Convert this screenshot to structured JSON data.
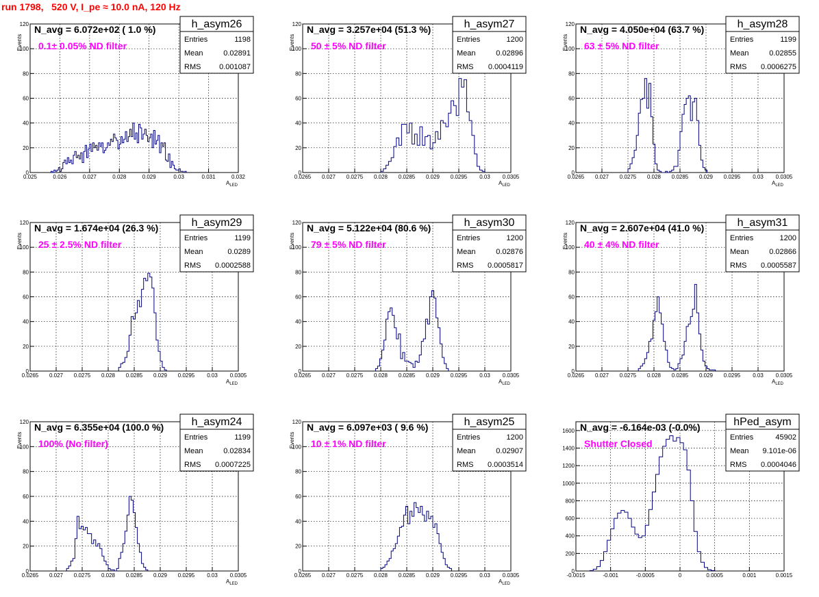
{
  "header": {
    "title": "run 1798,   520 V, I_pe ≈ 10.0 nA, 120 Hz"
  },
  "colors": {
    "title": "#ff0000",
    "histogram": "#000080",
    "filter_label": "#ff00ff"
  },
  "chart_data": [
    {
      "type": "histogram",
      "name": "h_asym26",
      "navg": "N_avg = 6.072e+02 ( 1.0 %)",
      "filter": "0.1± 0.05% ND filter",
      "stats": [
        [
          "Entries",
          "1198"
        ],
        [
          "Mean",
          "0.02891"
        ],
        [
          "RMS",
          "0.001087"
        ]
      ],
      "ylabel": "Events",
      "xlabel": "A",
      "xlabel_sub": "LED",
      "xlim": [
        0.025,
        0.032
      ],
      "ylim": [
        0,
        120
      ],
      "xticks": [
        0.025,
        0.026,
        0.027,
        0.028,
        0.029,
        0.03,
        0.031,
        0.032
      ],
      "xtick_labels": [
        "0.025",
        "0.026",
        "0.027",
        "0.028",
        "0.029",
        "0.03",
        "0.031",
        "0.032"
      ],
      "yticks": [
        0,
        20,
        40,
        60,
        80,
        100,
        120
      ],
      "ytick_labels": [
        "0",
        "20",
        "40",
        "60",
        "80",
        "100",
        "120"
      ],
      "bin_start": 0.0257,
      "bin_width": 5e-05,
      "counts": [
        1,
        0,
        2,
        1,
        2,
        4,
        1,
        3,
        8,
        10,
        7,
        12,
        8,
        10,
        7,
        14,
        17,
        12,
        14,
        11,
        16,
        8,
        17,
        22,
        12,
        19,
        23,
        17,
        24,
        20,
        22,
        18,
        24,
        21,
        24,
        16,
        18,
        20,
        24,
        22,
        27,
        25,
        31,
        28,
        26,
        19,
        23,
        29,
        24,
        27,
        33,
        25,
        29,
        35,
        29,
        40,
        27,
        32,
        24,
        39,
        36,
        27,
        31,
        35,
        30,
        25,
        28,
        31,
        20,
        34,
        23,
        26,
        30,
        16,
        24,
        21,
        24,
        10,
        9,
        15,
        4,
        9,
        6,
        3,
        2,
        2,
        3,
        1,
        1,
        0,
        1
      ]
    },
    {
      "type": "histogram",
      "name": "h_asym27",
      "navg": "N_avg = 3.257e+04 (51.3 %)",
      "filter": "50 ± 5% ND filter",
      "stats": [
        [
          "Entries",
          "1200"
        ],
        [
          "Mean",
          "0.02896"
        ],
        [
          "RMS",
          "0.0004119"
        ]
      ],
      "ylabel": "Events",
      "xlabel": "A",
      "xlabel_sub": "LED",
      "xlim": [
        0.0265,
        0.0305
      ],
      "ylim": [
        0,
        120
      ],
      "xticks": [
        0.0265,
        0.027,
        0.0275,
        0.028,
        0.0285,
        0.029,
        0.0295,
        0.03,
        0.0305
      ],
      "xtick_labels": [
        "0.0265",
        "0.027",
        "0.0275",
        "0.028",
        "0.0285",
        "0.029",
        "0.0295",
        "0.03",
        "0.0305"
      ],
      "yticks": [
        0,
        20,
        40,
        60,
        80,
        100,
        120
      ],
      "ytick_labels": [
        "0",
        "20",
        "40",
        "60",
        "80",
        "100",
        "120"
      ],
      "bin_start": 0.028,
      "bin_width": 5e-05,
      "counts": [
        1,
        3,
        6,
        9,
        12,
        21,
        28,
        22,
        39,
        39,
        32,
        40,
        23,
        31,
        22,
        37,
        22,
        29,
        30,
        19,
        24,
        33,
        27,
        42,
        40,
        37,
        48,
        58,
        54,
        46,
        76,
        69,
        75,
        49,
        42,
        30,
        15,
        5,
        2,
        1
      ]
    },
    {
      "type": "histogram",
      "name": "h_asym28",
      "navg": "N_avg = 4.050e+04 (63.7 %)",
      "filter": "63 ± 5% ND filter",
      "stats": [
        [
          "Entries",
          "1199"
        ],
        [
          "Mean",
          "0.02855"
        ],
        [
          "RMS",
          "0.0006275"
        ]
      ],
      "ylabel": "Events",
      "xlabel": "A",
      "xlabel_sub": "LED",
      "xlim": [
        0.0265,
        0.0305
      ],
      "ylim": [
        0,
        120
      ],
      "xticks": [
        0.0265,
        0.027,
        0.0275,
        0.028,
        0.0285,
        0.029,
        0.0295,
        0.03,
        0.0305
      ],
      "xtick_labels": [
        "0.0265",
        "0.027",
        "0.0275",
        "0.028",
        "0.0285",
        "0.029",
        "0.0295",
        "0.03",
        "0.0305"
      ],
      "yticks": [
        0,
        20,
        40,
        60,
        80,
        100,
        120
      ],
      "ytick_labels": [
        "0",
        "20",
        "40",
        "60",
        "80",
        "100",
        "120"
      ],
      "bin_start": 0.0275,
      "bin_width": 4e-05,
      "counts": [
        3,
        7,
        12,
        18,
        30,
        48,
        59,
        60,
        76,
        52,
        72,
        45,
        23,
        7,
        2,
        1,
        0,
        0,
        1,
        0,
        1,
        2,
        5,
        5,
        18,
        33,
        47,
        55,
        60,
        62,
        42,
        57,
        60,
        42,
        22,
        10,
        4,
        2
      ]
    },
    {
      "type": "histogram",
      "name": "h_asym29",
      "navg": "N_avg = 1.674e+04 (26.3 %)",
      "filter": "25 ± 2.5% ND filter",
      "stats": [
        [
          "Entries",
          "1199"
        ],
        [
          "Mean",
          "0.0289"
        ],
        [
          "RMS",
          "0.0002588"
        ]
      ],
      "ylabel": "Events",
      "xlabel": "A",
      "xlabel_sub": "LED",
      "xlim": [
        0.0265,
        0.0305
      ],
      "ylim": [
        0,
        120
      ],
      "xticks": [
        0.0265,
        0.027,
        0.0275,
        0.028,
        0.0285,
        0.029,
        0.0295,
        0.03,
        0.0305
      ],
      "xtick_labels": [
        "0.0265",
        "0.027",
        "0.0275",
        "0.028",
        "0.0285",
        "0.029",
        "0.0295",
        "0.03",
        "0.0305"
      ],
      "yticks": [
        0,
        20,
        40,
        60,
        80,
        100,
        120
      ],
      "ytick_labels": [
        "0",
        "20",
        "40",
        "60",
        "80",
        "100",
        "120"
      ],
      "bin_start": 0.0282,
      "bin_width": 4e-05,
      "counts": [
        3,
        6,
        7,
        11,
        16,
        29,
        44,
        42,
        47,
        57,
        52,
        66,
        75,
        73,
        79,
        76,
        67,
        47,
        25,
        16,
        8,
        3,
        1
      ]
    },
    {
      "type": "histogram",
      "name": "h_asym30",
      "navg": "N_avg = 5.122e+04 (80.6 %)",
      "filter": "79 ± 5% ND filter",
      "stats": [
        [
          "Entries",
          "1200"
        ],
        [
          "Mean",
          "0.02876"
        ],
        [
          "RMS",
          "0.0005817"
        ]
      ],
      "ylabel": "Events",
      "xlabel": "A",
      "xlabel_sub": "LED",
      "xlim": [
        0.0265,
        0.0305
      ],
      "ylim": [
        0,
        120
      ],
      "xticks": [
        0.0265,
        0.027,
        0.0275,
        0.028,
        0.0285,
        0.029,
        0.0295,
        0.03,
        0.0305
      ],
      "xtick_labels": [
        "0.0265",
        "0.027",
        "0.0275",
        "0.028",
        "0.0285",
        "0.029",
        "0.0295",
        "0.03",
        "0.0305"
      ],
      "yticks": [
        0,
        20,
        40,
        60,
        80,
        100,
        120
      ],
      "ytick_labels": [
        "0",
        "20",
        "40",
        "60",
        "80",
        "100",
        "120"
      ],
      "bin_start": 0.0279,
      "bin_width": 4e-05,
      "counts": [
        2,
        4,
        10,
        17,
        25,
        42,
        48,
        51,
        45,
        35,
        26,
        30,
        10,
        15,
        8,
        8,
        7,
        6,
        3,
        8,
        7,
        13,
        24,
        26,
        42,
        38,
        60,
        65,
        59,
        43,
        35,
        22,
        11,
        6,
        2
      ]
    },
    {
      "type": "histogram",
      "name": "h_asym31",
      "navg": "N_avg = 2.607e+04 (41.0 %)",
      "filter": "40 ± 4% ND filter",
      "stats": [
        [
          "Entries",
          "1200"
        ],
        [
          "Mean",
          "0.02866"
        ],
        [
          "RMS",
          "0.0005587"
        ]
      ],
      "ylabel": "Events",
      "xlabel": "A",
      "xlabel_sub": "LED",
      "xlim": [
        0.0265,
        0.0305
      ],
      "ylim": [
        0,
        120
      ],
      "xticks": [
        0.0265,
        0.027,
        0.0275,
        0.028,
        0.0285,
        0.029,
        0.0295,
        0.03,
        0.0305
      ],
      "xtick_labels": [
        "0.0265",
        "0.027",
        "0.0275",
        "0.028",
        "0.0285",
        "0.029",
        "0.0295",
        "0.03",
        "0.0305"
      ],
      "yticks": [
        0,
        20,
        40,
        60,
        80,
        100,
        120
      ],
      "ytick_labels": [
        "0",
        "20",
        "40",
        "60",
        "80",
        "100",
        "120"
      ],
      "bin_start": 0.0277,
      "bin_width": 4e-05,
      "counts": [
        2,
        4,
        6,
        10,
        15,
        24,
        26,
        41,
        48,
        60,
        47,
        38,
        24,
        17,
        7,
        3,
        2,
        1,
        2,
        6,
        10,
        13,
        24,
        36,
        38,
        44,
        50,
        70,
        47,
        30,
        17,
        8,
        4,
        2,
        1,
        1,
        1
      ]
    },
    {
      "type": "histogram",
      "name": "h_asym24",
      "navg": "N_avg = 6.355e+04 (100.0 %)",
      "filter": "100% (No filter)",
      "stats": [
        [
          "Entries",
          "1199"
        ],
        [
          "Mean",
          "0.02834"
        ],
        [
          "RMS",
          "0.0007225"
        ]
      ],
      "ylabel": "Events",
      "xlabel": "A",
      "xlabel_sub": "LED",
      "xlim": [
        0.0265,
        0.0305
      ],
      "ylim": [
        0,
        120
      ],
      "xticks": [
        0.0265,
        0.027,
        0.0275,
        0.028,
        0.0285,
        0.029,
        0.0295,
        0.03,
        0.0305
      ],
      "xtick_labels": [
        "0.0265",
        "0.027",
        "0.0275",
        "0.028",
        "0.0285",
        "0.029",
        "0.0295",
        "0.03",
        "0.0305"
      ],
      "yticks": [
        0,
        20,
        40,
        60,
        80,
        100,
        120
      ],
      "ytick_labels": [
        "0",
        "20",
        "40",
        "60",
        "80",
        "100",
        "120"
      ],
      "bin_start": 0.0272,
      "bin_width": 4e-05,
      "counts": [
        2,
        4,
        8,
        10,
        26,
        44,
        34,
        36,
        33,
        35,
        30,
        30,
        22,
        25,
        20,
        22,
        18,
        12,
        8,
        5,
        2,
        1,
        1,
        0,
        2,
        10,
        15,
        22,
        32,
        45,
        60,
        57,
        47,
        35,
        22,
        15,
        6,
        3,
        1
      ]
    },
    {
      "type": "histogram",
      "name": "h_asym25",
      "navg": "N_avg = 6.097e+03 ( 9.6 %)",
      "filter": "10 ± 1% ND filter",
      "stats": [
        [
          "Entries",
          "1200"
        ],
        [
          "Mean",
          "0.02907"
        ],
        [
          "RMS",
          "0.0003514"
        ]
      ],
      "ylabel": "Events",
      "xlabel": "A",
      "xlabel_sub": "LED",
      "xlim": [
        0.0265,
        0.0305
      ],
      "ylim": [
        0,
        120
      ],
      "xticks": [
        0.0265,
        0.027,
        0.0275,
        0.028,
        0.0285,
        0.029,
        0.0295,
        0.03,
        0.0305
      ],
      "xtick_labels": [
        "0.0265",
        "0.027",
        "0.0275",
        "0.028",
        "0.0285",
        "0.029",
        "0.0295",
        "0.03",
        "0.0305"
      ],
      "yticks": [
        0,
        20,
        40,
        60,
        80,
        100,
        120
      ],
      "ytick_labels": [
        "0",
        "20",
        "40",
        "60",
        "80",
        "100",
        "120"
      ],
      "bin_start": 0.028,
      "bin_width": 4e-05,
      "counts": [
        2,
        3,
        5,
        8,
        10,
        16,
        18,
        22,
        28,
        35,
        36,
        45,
        52,
        38,
        48,
        44,
        55,
        51,
        47,
        52,
        45,
        40,
        48,
        42,
        44,
        35,
        38,
        30,
        22,
        15,
        10,
        5,
        3,
        2
      ]
    },
    {
      "type": "histogram",
      "name": "hPed_asym",
      "navg": "N_avg = -6.164e-03 (-0.0%)",
      "filter": "Shutter Closed",
      "stats": [
        [
          "Entries",
          "45902"
        ],
        [
          "Mean",
          "9.101e-06"
        ],
        [
          "RMS",
          "0.0004046"
        ]
      ],
      "ylabel": "",
      "xlabel": "",
      "xlabel_sub": "",
      "xlim": [
        -0.0015,
        0.0015
      ],
      "ylim": [
        0,
        1700
      ],
      "xticks": [
        -0.0015,
        -0.001,
        -0.0005,
        0,
        0.0005,
        0.001,
        0.0015
      ],
      "xtick_labels": [
        "-0.0015",
        "-0.001",
        "-0.0005",
        "0",
        "0.0005",
        "0.001",
        "0.0015"
      ],
      "yticks": [
        0,
        200,
        400,
        600,
        800,
        1000,
        1200,
        1400,
        1600
      ],
      "ytick_labels": [
        "0",
        "200",
        "400",
        "600",
        "800",
        "1000",
        "1200",
        "1400",
        "1600"
      ],
      "bin_start": -0.0013,
      "bin_width": 5e-05,
      "counts": [
        5,
        20,
        50,
        120,
        220,
        350,
        480,
        600,
        660,
        690,
        670,
        600,
        500,
        420,
        380,
        400,
        520,
        700,
        900,
        1100,
        1300,
        1420,
        1500,
        1540,
        1480,
        1520,
        1460,
        1380,
        1150,
        800,
        450,
        220,
        100,
        40,
        15,
        5
      ]
    }
  ]
}
